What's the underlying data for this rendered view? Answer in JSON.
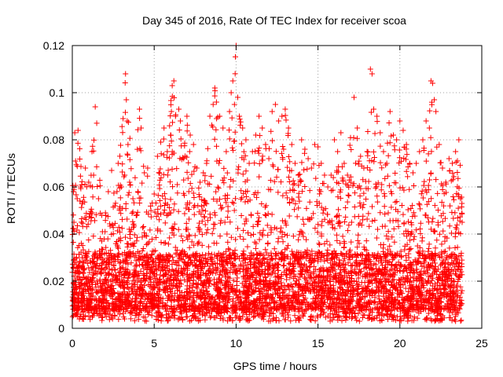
{
  "chart_data": {
    "type": "scatter",
    "title": "Day 345 of 2016, Rate Of TEC Index for receiver scoa",
    "xlabel": "GPS time / hours",
    "ylabel": "ROTI / TECUs",
    "xlim": [
      0,
      25
    ],
    "ylim": [
      0,
      0.12
    ],
    "x_ticks": [
      0,
      5,
      10,
      15,
      20,
      25
    ],
    "y_ticks": [
      0,
      0.02,
      0.04,
      0.06,
      0.08,
      0.1,
      0.12
    ],
    "x_tick_labels": [
      "0",
      "5",
      "10",
      "15",
      "20",
      "25"
    ],
    "y_tick_labels": [
      "0",
      "0.02",
      "0.04",
      "0.06",
      "0.08",
      "0.1",
      "0.12"
    ],
    "grid": true,
    "marker": "plus",
    "color": "#ff0000",
    "series": [
      {
        "points": [
          [
            0.05,
            0.012
          ],
          [
            0.1,
            0.045
          ],
          [
            0.15,
            0.083
          ],
          [
            0.2,
            0.071
          ],
          [
            0.3,
            0.055
          ],
          [
            0.35,
            0.084
          ],
          [
            0.5,
            0.06
          ],
          [
            0.6,
            0.03
          ],
          [
            0.8,
            0.068
          ],
          [
            1.0,
            0.062
          ],
          [
            1.2,
            0.075
          ],
          [
            1.3,
            0.065
          ],
          [
            1.4,
            0.094
          ],
          [
            1.6,
            0.055
          ],
          [
            1.8,
            0.048
          ],
          [
            2.0,
            0.041
          ],
          [
            2.2,
            0.058
          ],
          [
            2.4,
            0.067
          ],
          [
            2.6,
            0.052
          ],
          [
            2.8,
            0.07
          ],
          [
            3.0,
            0.06
          ],
          [
            3.1,
            0.089
          ],
          [
            3.2,
            0.065
          ],
          [
            3.25,
            0.108
          ],
          [
            3.3,
            0.097
          ],
          [
            3.35,
            0.088
          ],
          [
            3.4,
            0.078
          ],
          [
            3.5,
            0.062
          ],
          [
            3.7,
            0.055
          ],
          [
            3.9,
            0.048
          ],
          [
            4.0,
            0.058
          ],
          [
            4.1,
            0.093
          ],
          [
            4.2,
            0.085
          ],
          [
            4.4,
            0.066
          ],
          [
            4.6,
            0.068
          ],
          [
            4.8,
            0.05
          ],
          [
            5.0,
            0.057
          ],
          [
            5.2,
            0.073
          ],
          [
            5.4,
            0.079
          ],
          [
            5.6,
            0.085
          ],
          [
            5.8,
            0.075
          ],
          [
            6.0,
            0.082
          ],
          [
            6.05,
            0.092
          ],
          [
            6.1,
            0.103
          ],
          [
            6.2,
            0.105
          ],
          [
            6.3,
            0.09
          ],
          [
            6.5,
            0.093
          ],
          [
            6.6,
            0.088
          ],
          [
            6.8,
            0.072
          ],
          [
            7.0,
            0.09
          ],
          [
            7.2,
            0.082
          ],
          [
            7.4,
            0.078
          ],
          [
            7.6,
            0.068
          ],
          [
            7.8,
            0.062
          ],
          [
            8.0,
            0.066
          ],
          [
            8.2,
            0.07
          ],
          [
            8.4,
            0.09
          ],
          [
            8.6,
            0.095
          ],
          [
            8.7,
            0.102
          ],
          [
            8.8,
            0.096
          ],
          [
            9.0,
            0.09
          ],
          [
            9.2,
            0.085
          ],
          [
            9.4,
            0.075
          ],
          [
            9.6,
            0.092
          ],
          [
            9.7,
            0.1
          ],
          [
            9.8,
            0.105
          ],
          [
            9.9,
            0.095
          ],
          [
            10.0,
            0.12
          ],
          [
            10.1,
            0.098
          ],
          [
            10.2,
            0.09
          ],
          [
            10.4,
            0.085
          ],
          [
            10.6,
            0.08
          ],
          [
            10.8,
            0.07
          ],
          [
            11.0,
            0.075
          ],
          [
            11.2,
            0.082
          ],
          [
            11.4,
            0.09
          ],
          [
            11.6,
            0.085
          ],
          [
            11.8,
            0.078
          ],
          [
            12.0,
            0.072
          ],
          [
            12.2,
            0.092
          ],
          [
            12.4,
            0.095
          ],
          [
            12.6,
            0.088
          ],
          [
            12.8,
            0.09
          ],
          [
            13.0,
            0.093
          ],
          [
            13.2,
            0.085
          ],
          [
            13.4,
            0.078
          ],
          [
            13.6,
            0.07
          ],
          [
            13.8,
            0.065
          ],
          [
            14.0,
            0.08
          ],
          [
            14.2,
            0.076
          ],
          [
            14.4,
            0.072
          ],
          [
            14.6,
            0.068
          ],
          [
            14.8,
            0.078
          ],
          [
            15.0,
            0.077
          ],
          [
            15.2,
            0.07
          ],
          [
            15.4,
            0.065
          ],
          [
            15.6,
            0.06
          ],
          [
            15.8,
            0.065
          ],
          [
            16.0,
            0.08
          ],
          [
            16.2,
            0.075
          ],
          [
            16.4,
            0.083
          ],
          [
            16.6,
            0.07
          ],
          [
            16.8,
            0.065
          ],
          [
            17.0,
            0.062
          ],
          [
            17.2,
            0.098
          ],
          [
            17.4,
            0.085
          ],
          [
            17.6,
            0.073
          ],
          [
            17.8,
            0.068
          ],
          [
            18.0,
            0.075
          ],
          [
            18.2,
            0.11
          ],
          [
            18.3,
            0.108
          ],
          [
            18.4,
            0.093
          ],
          [
            18.6,
            0.09
          ],
          [
            18.8,
            0.083
          ],
          [
            19.0,
            0.075
          ],
          [
            19.2,
            0.07
          ],
          [
            19.4,
            0.092
          ],
          [
            19.6,
            0.082
          ],
          [
            19.8,
            0.08
          ],
          [
            20.0,
            0.088
          ],
          [
            20.2,
            0.084
          ],
          [
            20.4,
            0.078
          ],
          [
            20.6,
            0.07
          ],
          [
            20.8,
            0.066
          ],
          [
            21.0,
            0.07
          ],
          [
            21.2,
            0.075
          ],
          [
            21.4,
            0.08
          ],
          [
            21.6,
            0.088
          ],
          [
            21.8,
            0.085
          ],
          [
            21.9,
            0.105
          ],
          [
            22.0,
            0.104
          ],
          [
            22.1,
            0.097
          ],
          [
            22.2,
            0.092
          ],
          [
            22.4,
            0.078
          ],
          [
            22.6,
            0.068
          ],
          [
            22.8,
            0.062
          ],
          [
            23.0,
            0.072
          ],
          [
            23.2,
            0.07
          ],
          [
            23.4,
            0.075
          ],
          [
            23.6,
            0.08
          ],
          [
            23.7,
            0.055
          ],
          [
            23.8,
            0.045
          ]
        ],
        "dense_band": {
          "x_range": [
            0.0,
            23.8
          ],
          "y_range": [
            0.003,
            0.032
          ]
        }
      }
    ]
  }
}
